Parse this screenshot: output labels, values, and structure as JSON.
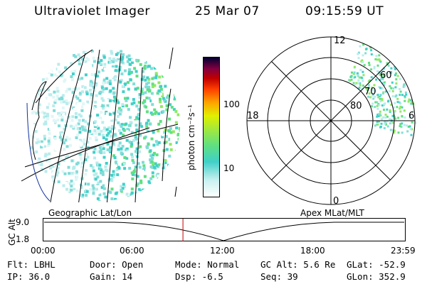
{
  "header": {
    "instrument": "Ultraviolet Imager",
    "date": "25 Mar 07",
    "time": "09:15:59 UT"
  },
  "colorbar": {
    "label": "photon cm⁻²s⁻¹",
    "ticks": [
      "100",
      "10"
    ],
    "colors": [
      "#ffffff",
      "#c8f0f0",
      "#40d0c8",
      "#60e080",
      "#a0e840",
      "#e0f000",
      "#ffa000",
      "#ff4000",
      "#c00000",
      "#800040",
      "#000030"
    ]
  },
  "polar": {
    "mlt_labels": {
      "top": "12",
      "bottom": "0",
      "left": "18",
      "right": "6"
    },
    "lat_labels": [
      "60",
      "70",
      "80"
    ]
  },
  "timeline": {
    "left_label": "Geographic Lat/Lon",
    "right_label": "Apex MLat/MLT",
    "axis_label": "GC Alt",
    "y_max": "9.0",
    "y_min": "1.8",
    "x_ticks": [
      "00:00",
      "06:00",
      "12:00",
      "18:00",
      "23:59"
    ],
    "current_time_fraction": 0.386
  },
  "info": {
    "filter": "Flt: LBHL",
    "ip": "IP: 36.0",
    "door": "Door: Open",
    "gain": "Gain: 14",
    "mode": "Mode: Normal",
    "dsp": "Dsp:   -6.5",
    "gc_alt": "GC Alt: 5.6 Re",
    "seq": "Seq: 39",
    "glat": "GLat: -52.9",
    "glon": "GLon: 352.9"
  }
}
